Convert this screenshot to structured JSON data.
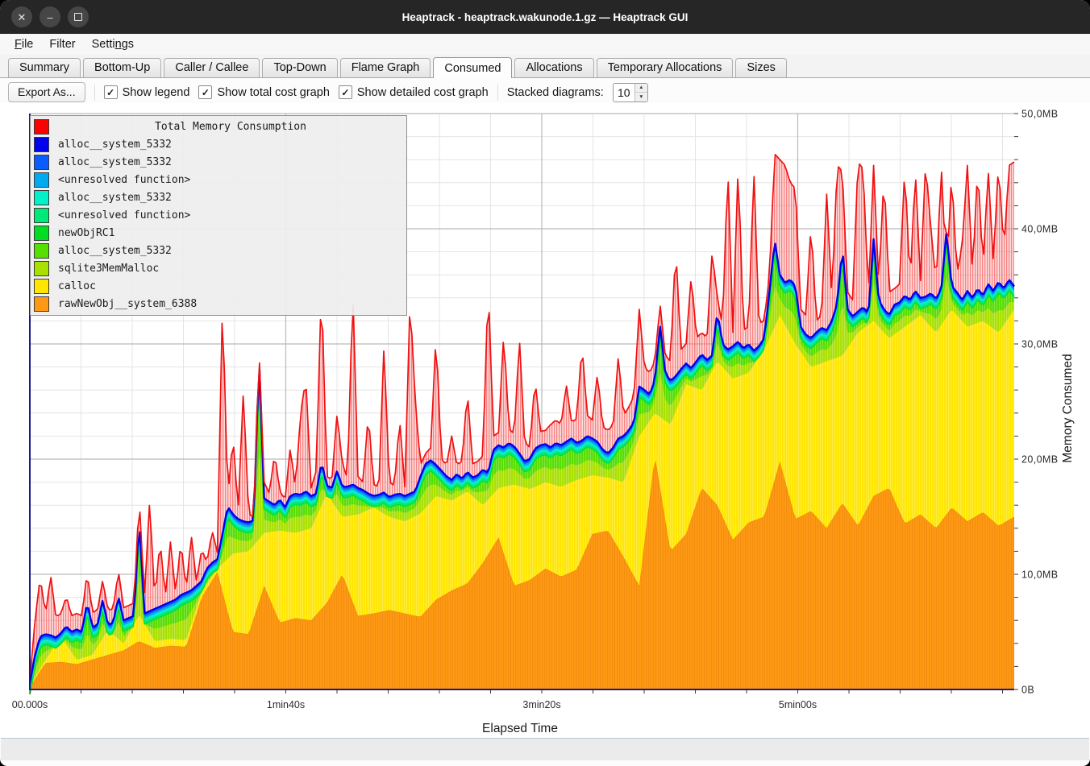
{
  "window": {
    "title": "Heaptrack - heaptrack.wakunode.1.gz — Heaptrack GUI",
    "controls": {
      "close": "✕",
      "minimize": "–"
    }
  },
  "menu": {
    "items": [
      {
        "label": "File",
        "underline": 0
      },
      {
        "label": "Filter",
        "underline": null
      },
      {
        "label": "Settings",
        "underline": 5
      }
    ]
  },
  "tabs": {
    "items": [
      "Summary",
      "Bottom-Up",
      "Caller / Callee",
      "Top-Down",
      "Flame Graph",
      "Consumed",
      "Allocations",
      "Temporary Allocations",
      "Sizes"
    ],
    "active": "Consumed"
  },
  "toolbar": {
    "export_label": "Export As...",
    "checkboxes": [
      {
        "label": "Show legend",
        "checked": true
      },
      {
        "label": "Show total cost graph",
        "checked": true
      },
      {
        "label": "Show detailed cost graph",
        "checked": true
      }
    ],
    "stacked_label": "Stacked diagrams:",
    "stacked_value": "10"
  },
  "chart_data": {
    "type": "area",
    "title": "Total Memory Consumption",
    "xlabel": "Elapsed Time",
    "ylabel": "Memory Consumed",
    "x_ticks": [
      "00.000s",
      "1min40s",
      "3min20s",
      "5min00s"
    ],
    "x_tick_seconds": [
      0,
      100,
      200,
      300
    ],
    "minor_x_step_s": 20,
    "y_ticks": [
      "0B",
      "10,0MB",
      "20,0MB",
      "30,0MB",
      "40,0MB",
      "50,0MB"
    ],
    "minor_y_step_mb": 2,
    "ylim_mb": [
      0,
      50
    ],
    "duration_s": 385,
    "grid": true,
    "legend_position": "top-left",
    "legend": {
      "title": {
        "label": "Total Memory Consumption",
        "color": "#ff0000"
      },
      "items": [
        {
          "label": "alloc__system_5332",
          "color": "#0000ee"
        },
        {
          "label": "alloc__system_5332",
          "color": "#0b5cff"
        },
        {
          "label": "<unresolved function>",
          "color": "#00aaf0"
        },
        {
          "label": "alloc__system_5332",
          "color": "#00f0c8"
        },
        {
          "label": "<unresolved function>",
          "color": "#00e878"
        },
        {
          "label": "newObjRC1",
          "color": "#00dd22"
        },
        {
          "label": "alloc__system_5332",
          "color": "#55e000"
        },
        {
          "label": "sqlite3MemMalloc",
          "color": "#a8e000"
        },
        {
          "label": "calloc",
          "color": "#ffe600"
        },
        {
          "label": "rawNewObj__system_6388",
          "color": "#ff9914"
        }
      ]
    },
    "colors": {
      "total": "#f01010",
      "darkblue": "#0000ee",
      "blue": "#0b5cff",
      "lightblue": "#00aaf0",
      "turquoise": "#00f0c8",
      "springgreen": "#00e878",
      "green_edge": "#00dd22",
      "green": "#55dd00",
      "ygreen": "#a8e000",
      "yellow": "#ffe600",
      "orange": "#ff9914",
      "spine": "#18188c"
    },
    "series": [
      {
        "role": "total",
        "name": "Total Memory Consumption",
        "color": "#f01010",
        "unit": "MB",
        "values": [
          0.8,
          6.0,
          9.8,
          6.5,
          9.9,
          6.3,
          6.6,
          8.1,
          6.4,
          6.6,
          6.4,
          10.2,
          6.7,
          6.9,
          9.5,
          6.9,
          7.0,
          10.3,
          7.1,
          7.3,
          7.5,
          16.7,
          8.0,
          16.4,
          7.7,
          13.0,
          8.0,
          12.8,
          8.3,
          12.9,
          8.6,
          13.4,
          9.3,
          12.2,
          11.0,
          13.8,
          11.9,
          34.0,
          16.5,
          22.0,
          15.5,
          26.0,
          15.2,
          15.0,
          29.5,
          18.0,
          17.0,
          20.5,
          17.2,
          16.5,
          21.0,
          17.5,
          24.0,
          27.0,
          17.5,
          19.0,
          35.4,
          18.5,
          18.2,
          24.0,
          19.6,
          18.3,
          35.0,
          18.5,
          18.0,
          24.0,
          17.8,
          17.6,
          30.0,
          18.0,
          17.7,
          23.5,
          17.6,
          34.0,
          25.0,
          19.5,
          20.5,
          21.0,
          31.0,
          20.0,
          19.5,
          22.0,
          19.5,
          19.8,
          26.0,
          19.6,
          19.8,
          20.3,
          35.4,
          22.0,
          22.3,
          31.0,
          22.6,
          22.2,
          30.5,
          21.5,
          21.0,
          27.0,
          22.4,
          22.5,
          23.0,
          23.4,
          23.0,
          26.5,
          23.2,
          23.5,
          30.0,
          23.8,
          23.4,
          27.5,
          22.8,
          22.5,
          23.0,
          29.0,
          23.8,
          24.5,
          25.5,
          33.0,
          28.0,
          27.5,
          28.5,
          33.5,
          29.0,
          28.5,
          38.5,
          29.5,
          30.0,
          36.0,
          30.5,
          31.0,
          30.5,
          38.0,
          34.0,
          31.5,
          45.5,
          31.0,
          45.8,
          31.2,
          31.5,
          45.2,
          31.8,
          32.0,
          36.0,
          46.5,
          46.0,
          45.5,
          44.0,
          43.5,
          33.0,
          32.5,
          40.5,
          32.0,
          32.5,
          43.0,
          34.0,
          45.5,
          45.0,
          34.5,
          33.8,
          45.8,
          45.2,
          34.2,
          45.5,
          35.0,
          44.8,
          34.5,
          34.8,
          35.2,
          45.6,
          35.0,
          45.2,
          35.5,
          45.8,
          40.0,
          35.2,
          45.4,
          35.6,
          45.0,
          36.0,
          38.5,
          45.5,
          36.0,
          45.6,
          36.5,
          45.2,
          37.0,
          45.8,
          38.0,
          45.5,
          45.8
        ]
      },
      {
        "role": "stack-top",
        "name": "detailed allocations stack top (alloc__system_5332)",
        "color": "#0000ee",
        "unit": "MB",
        "values": [
          0.5,
          3.0,
          4.6,
          4.8,
          4.7,
          4.5,
          4.9,
          5.5,
          5.0,
          5.2,
          5.0,
          7.6,
          5.4,
          5.6,
          7.8,
          5.6,
          5.8,
          8.1,
          6.0,
          6.2,
          6.4,
          14.9,
          6.6,
          6.8,
          7.0,
          7.2,
          7.4,
          7.6,
          7.8,
          8.2,
          8.4,
          8.6,
          9.0,
          9.4,
          10.5,
          11.0,
          11.3,
          13.5,
          15.9,
          15.2,
          14.8,
          14.6,
          14.5,
          14.7,
          29.0,
          16.6,
          16.3,
          16.0,
          16.5,
          15.8,
          16.8,
          17.0,
          16.9,
          17.2,
          16.8,
          17.0,
          19.8,
          17.7,
          17.5,
          19.0,
          17.6,
          17.6,
          17.8,
          17.5,
          17.3,
          17.0,
          16.8,
          16.9,
          17.1,
          16.7,
          16.9,
          17.0,
          16.8,
          17.0,
          17.2,
          18.5,
          19.6,
          19.9,
          19.5,
          19.0,
          18.5,
          18.2,
          18.7,
          18.3,
          18.9,
          18.4,
          18.6,
          19.1,
          18.8,
          20.8,
          21.2,
          21.0,
          21.4,
          21.1,
          20.5,
          19.8,
          20.0,
          20.9,
          21.2,
          21.3,
          21.0,
          21.4,
          21.2,
          21.5,
          21.8,
          21.4,
          21.6,
          22.0,
          21.8,
          21.5,
          20.8,
          20.5,
          21.0,
          21.8,
          22.0,
          22.5,
          23.2,
          26.3,
          26.0,
          25.6,
          26.8,
          31.7,
          27.5,
          26.8,
          27.2,
          27.8,
          28.3,
          27.9,
          28.5,
          29.1,
          28.6,
          29.0,
          32.8,
          30.0,
          29.5,
          29.8,
          30.2,
          29.6,
          30.0,
          29.4,
          29.8,
          30.5,
          34.5,
          39.0,
          36.0,
          35.3,
          35.6,
          35.0,
          31.5,
          30.8,
          30.5,
          31.0,
          31.4,
          31.2,
          32.0,
          33.5,
          38.4,
          33.0,
          32.4,
          32.8,
          33.2,
          32.6,
          39.1,
          33.8,
          33.0,
          32.5,
          33.4,
          33.6,
          34.2,
          33.8,
          34.6,
          34.0,
          34.1,
          34.4,
          33.9,
          34.8,
          39.8,
          35.0,
          34.5,
          33.8,
          34.6,
          34.0,
          34.8,
          34.2,
          35.2,
          34.6,
          35.4,
          34.8,
          35.6,
          35.0
        ]
      },
      {
        "role": "calloc-top",
        "name": "calloc cumulative top",
        "color": "#ffe600",
        "unit": "MB",
        "values": [
          0.3,
          2.6,
          4.6,
          2.6,
          3.0,
          5.2,
          4.0,
          6.5,
          4.2,
          4.4,
          4.3,
          8.5,
          10.5,
          11.8,
          12.0,
          13.6,
          13.8,
          13.6,
          14.0,
          17.0,
          15.0,
          15.2,
          15.8,
          15.0,
          14.6,
          15.3,
          16.8,
          16.4,
          17.2,
          16.0,
          17.5,
          17.8,
          17.4,
          18.0,
          17.6,
          18.2,
          18.6,
          18.4,
          18.0,
          22.0,
          24.0,
          23.0,
          26.5,
          26.0,
          28.5,
          27.0,
          27.5,
          29.5,
          32.5,
          30.0,
          28.0,
          28.5,
          29.0,
          31.0,
          32.0,
          30.5,
          31.5,
          32.5,
          31.0,
          33.0,
          31.5,
          32.0,
          31.0,
          33.0
        ]
      },
      {
        "role": "rawnewobj-top",
        "name": "rawNewObj__system_6388 top",
        "color": "#ff9914",
        "unit": "MB",
        "values": [
          0.2,
          2.3,
          2.4,
          2.2,
          2.6,
          3.0,
          3.4,
          4.2,
          3.6,
          3.8,
          3.7,
          8.0,
          10.2,
          5.0,
          4.8,
          9.0,
          5.8,
          6.2,
          6.0,
          7.5,
          10.0,
          6.4,
          6.6,
          6.9,
          6.6,
          6.3,
          7.8,
          8.6,
          9.2,
          11.0,
          13.2,
          9.0,
          9.5,
          10.5,
          9.8,
          10.4,
          13.5,
          13.8,
          11.5,
          9.0,
          20.3,
          12.0,
          13.5,
          17.5,
          16.0,
          13.0,
          14.5,
          15.0,
          19.8,
          14.8,
          15.5,
          14.0,
          16.2,
          14.2,
          16.8,
          17.5,
          14.4,
          15.2,
          14.0,
          15.8,
          14.6,
          15.4,
          14.2,
          15.0
        ]
      }
    ],
    "thin_band_total_mb": 0.9
  }
}
